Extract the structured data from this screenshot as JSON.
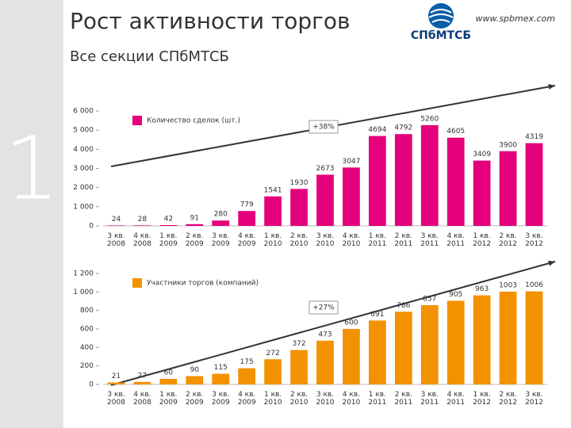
{
  "header": {
    "title": "Рост активности торгов",
    "subtitle": "Все секции СПбМТСБ",
    "slide_number": "1",
    "logo": "СПбМТСБ",
    "url": "www.spbmex.com"
  },
  "chart_data": [
    {
      "type": "bar",
      "categories": [
        "3 кв. 2008",
        "4 кв. 2008",
        "1 кв. 2009",
        "2 кв. 2009",
        "3 кв. 2009",
        "4 кв. 2009",
        "1 кв. 2010",
        "2 кв. 2010",
        "3 кв. 2010",
        "4 кв. 2010",
        "1 кв. 2011",
        "2 кв. 2011",
        "3 кв. 2011",
        "4 кв. 2011",
        "1 кв. 2012",
        "2 кв. 2012",
        "3 кв. 2012"
      ],
      "series": [
        {
          "name": "Количество сделок (шт.)",
          "color": "#e4007c",
          "values": [
            24,
            28,
            42,
            91,
            280,
            779,
            1541,
            1930,
            2673,
            3047,
            4694,
            4792,
            5260,
            4605,
            3409,
            3900,
            4319
          ]
        }
      ],
      "ylim": [
        0,
        6000
      ],
      "yticks": [
        0,
        {
          "value": 1000,
          "label": "1 000"
        },
        {
          "value": 2000,
          "label": "2 000"
        },
        {
          "value": 3000,
          "label": "3 000"
        },
        {
          "value": 4000,
          "label": "4 000"
        },
        {
          "value": 5000,
          "label": "5 000"
        },
        {
          "value": 6000,
          "label": "6 000"
        }
      ],
      "annotation": "+38%"
    },
    {
      "type": "bar",
      "categories": [
        "3 кв. 2008",
        "4 кв. 2008",
        "1 кв. 2009",
        "2 кв. 2009",
        "3 кв. 2009",
        "4 кв. 2009",
        "1 кв. 2010",
        "2 кв. 2010",
        "3 кв. 2010",
        "4 кв. 2010",
        "1 кв. 2011",
        "2 кв. 2011",
        "3 кв. 2011",
        "4 кв. 2011",
        "1 кв. 2012",
        "2 кв. 2012",
        "3 кв. 2012"
      ],
      "series": [
        {
          "name": "Участники торгов (компаний)",
          "color": "#f39200",
          "values": [
            21,
            27,
            60,
            90,
            115,
            175,
            272,
            372,
            473,
            600,
            691,
            786,
            857,
            905,
            963,
            1003,
            1006
          ]
        }
      ],
      "ylim": [
        0,
        1200
      ],
      "yticks": [
        0,
        200,
        400,
        600,
        800,
        {
          "value": 1000,
          "label": "1 000"
        },
        {
          "value": 1200,
          "label": "1 200"
        }
      ],
      "annotation": "+27%"
    }
  ]
}
